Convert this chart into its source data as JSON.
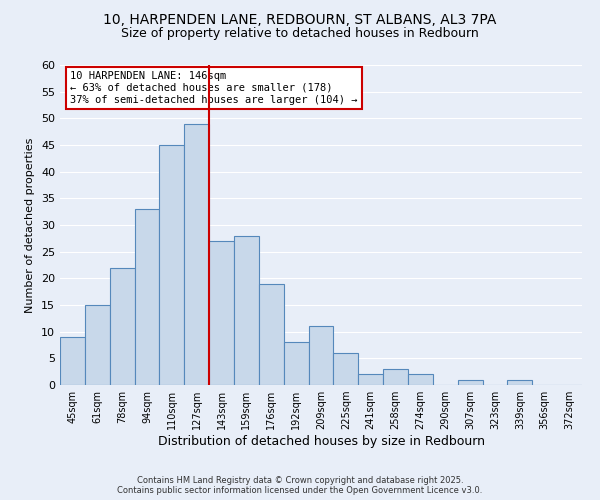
{
  "title_line1": "10, HARPENDEN LANE, REDBOURN, ST ALBANS, AL3 7PA",
  "title_line2": "Size of property relative to detached houses in Redbourn",
  "xlabel": "Distribution of detached houses by size in Redbourn",
  "ylabel": "Number of detached properties",
  "bin_labels": [
    "45sqm",
    "61sqm",
    "78sqm",
    "94sqm",
    "110sqm",
    "127sqm",
    "143sqm",
    "159sqm",
    "176sqm",
    "192sqm",
    "209sqm",
    "225sqm",
    "241sqm",
    "258sqm",
    "274sqm",
    "290sqm",
    "307sqm",
    "323sqm",
    "339sqm",
    "356sqm",
    "372sqm"
  ],
  "bar_values": [
    9,
    15,
    22,
    33,
    45,
    49,
    27,
    28,
    19,
    8,
    11,
    6,
    2,
    3,
    2,
    0,
    1,
    0,
    1,
    0,
    0
  ],
  "bar_color": "#c8d8ea",
  "bar_edge_color": "#5588bb",
  "vline_x_index": 6,
  "vline_color": "#cc0000",
  "annotation_title": "10 HARPENDEN LANE: 146sqm",
  "annotation_line1": "← 63% of detached houses are smaller (178)",
  "annotation_line2": "37% of semi-detached houses are larger (104) →",
  "annotation_box_color": "#ffffff",
  "annotation_box_edge": "#cc0000",
  "ylim": [
    0,
    60
  ],
  "yticks": [
    0,
    5,
    10,
    15,
    20,
    25,
    30,
    35,
    40,
    45,
    50,
    55,
    60
  ],
  "background_color": "#e8eef8",
  "footer_line1": "Contains HM Land Registry data © Crown copyright and database right 2025.",
  "footer_line2": "Contains public sector information licensed under the Open Government Licence v3.0.",
  "grid_color": "#ffffff",
  "title_fontsize": 10,
  "subtitle_fontsize": 9
}
